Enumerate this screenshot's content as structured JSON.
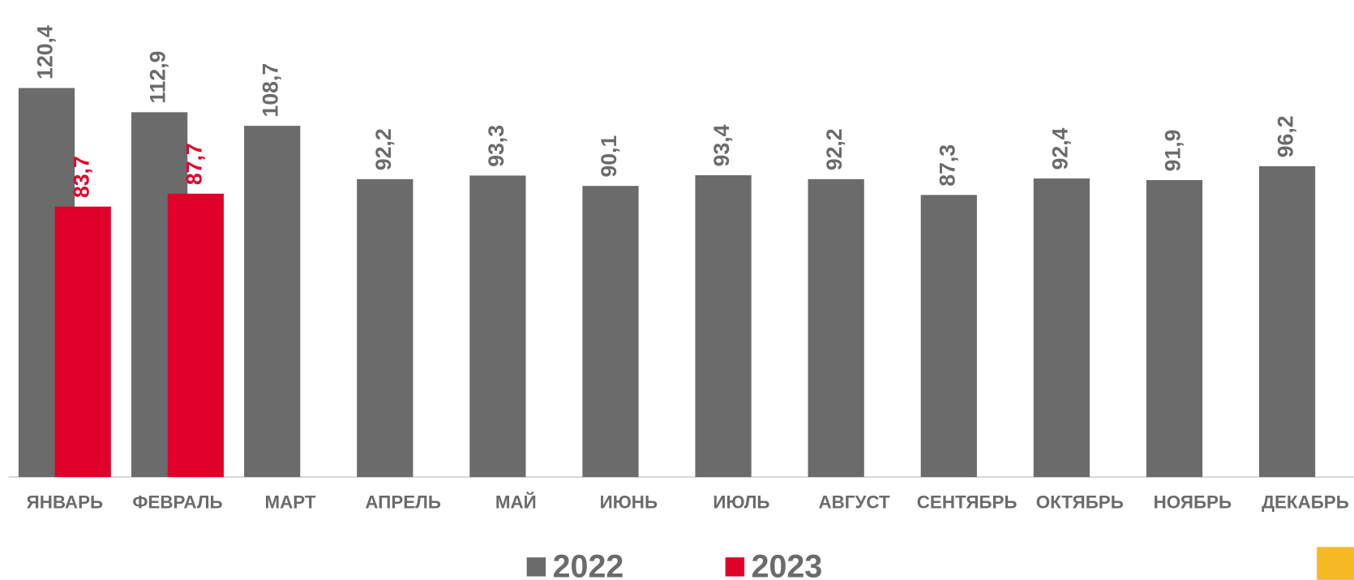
{
  "chart_data": {
    "type": "bar",
    "categories": [
      "ЯНВАРЬ",
      "ФЕВРАЛЬ",
      "МАРТ",
      "АПРЕЛЬ",
      "МАЙ",
      "ИЮНЬ",
      "ИЮЛЬ",
      "АВГУСТ",
      "СЕНТЯБРЬ",
      "ОКТЯБРЬ",
      "НОЯБРЬ",
      "ДЕКАБРЬ"
    ],
    "series": [
      {
        "name": "2022",
        "color": "#6b6b6b",
        "values": [
          120.4,
          112.9,
          108.7,
          92.2,
          93.3,
          90.1,
          93.4,
          92.2,
          87.3,
          92.4,
          91.9,
          96.2
        ],
        "value_labels": [
          "120,4",
          "112,9",
          "108,7",
          "92,2",
          "93,3",
          "90,1",
          "93,4",
          "92,2",
          "87,3",
          "92,4",
          "91,9",
          "96,2"
        ]
      },
      {
        "name": "2023",
        "color": "#e0002a",
        "values": [
          83.7,
          87.7,
          null,
          null,
          null,
          null,
          null,
          null,
          null,
          null,
          null,
          null
        ],
        "value_labels": [
          "83,7",
          "87,7",
          null,
          null,
          null,
          null,
          null,
          null,
          null,
          null,
          null,
          null
        ]
      }
    ],
    "ylim": [
      0,
      130
    ],
    "legend": "bottom"
  }
}
